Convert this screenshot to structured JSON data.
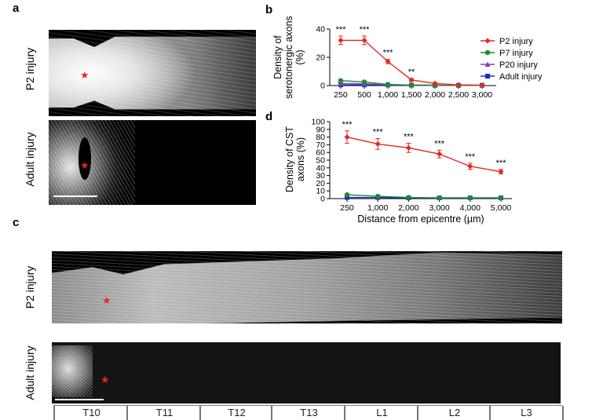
{
  "panels": {
    "a": {
      "letter": "a",
      "row_labels": [
        "P2 injury",
        "Adult injury"
      ]
    },
    "b": {
      "letter": "b"
    },
    "c": {
      "letter": "c",
      "row_labels": [
        "P2 injury",
        "Adult injury"
      ],
      "segments": [
        "T10",
        "T11",
        "T12",
        "T13",
        "L1",
        "L2",
        "L3"
      ]
    },
    "d": {
      "letter": "d"
    }
  },
  "lesion_marker": "★",
  "shared_xlabel": "Distance from epicentre (µm)",
  "colors": {
    "P2 injury": "#e8261f",
    "P7 injury": "#1e8a2e",
    "P20 injury": "#8a3fb5",
    "Adult injury": "#1a2bd6"
  },
  "chart_data": [
    {
      "id": "b",
      "type": "line",
      "ylabel": "Density of serotonergic axons (%)",
      "xlabel": "",
      "categories": [
        "250",
        "500",
        "1,000",
        "1,500",
        "2,000",
        "2,500",
        "3,000"
      ],
      "ylim": [
        0,
        40
      ],
      "yticks": [
        "0",
        "20",
        "40"
      ],
      "significance": [
        "***",
        "***",
        "***",
        "**",
        "",
        "",
        ""
      ],
      "legend_position": "right",
      "series": [
        {
          "name": "P2 injury",
          "marker": "diamond",
          "values": [
            32,
            32,
            17,
            4,
            1.5,
            0.5,
            0.3
          ],
          "errors": [
            3,
            3,
            1.5,
            1,
            0.5,
            0.3,
            0.2
          ]
        },
        {
          "name": "P7 injury",
          "marker": "circle",
          "values": [
            3.5,
            2.5,
            0.8,
            0.4,
            0.3,
            0.2,
            0.2
          ],
          "errors": [
            0,
            0,
            0,
            0,
            0,
            0,
            0
          ]
        },
        {
          "name": "P20 injury",
          "marker": "triangle",
          "values": [
            1.5,
            1.2,
            0.6,
            0.3,
            0.2,
            0.2,
            0.2
          ],
          "errors": [
            0,
            0,
            0,
            0,
            0,
            0,
            0
          ]
        },
        {
          "name": "Adult injury",
          "marker": "square",
          "values": [
            0.5,
            0.5,
            0.4,
            0.3,
            0.2,
            0.2,
            0.2
          ],
          "errors": [
            0,
            0,
            0,
            0,
            0,
            0,
            0
          ]
        }
      ]
    },
    {
      "id": "d",
      "type": "line",
      "ylabel": "Density of CST axons (%)",
      "xlabel": "Distance from epicentre (µm)",
      "categories": [
        "250",
        "1,000",
        "2,000",
        "3,000",
        "4,000",
        "5,000"
      ],
      "ylim": [
        0,
        100
      ],
      "yticks": [
        "0",
        "10",
        "20",
        "30",
        "40",
        "50",
        "60",
        "70",
        "80",
        "90",
        "100"
      ],
      "significance": [
        "***",
        "***",
        "***",
        "***",
        "***",
        "***"
      ],
      "series": [
        {
          "name": "P2 injury",
          "marker": "diamond",
          "values": [
            80,
            71,
            66,
            58,
            42,
            35
          ],
          "errors": [
            8,
            7,
            6,
            5,
            4,
            3
          ]
        },
        {
          "name": "P7 injury",
          "marker": "circle",
          "values": [
            5,
            3,
            1.5,
            1,
            1,
            1
          ],
          "errors": [
            0,
            0,
            0,
            0,
            0,
            0
          ]
        },
        {
          "name": "Adult injury",
          "marker": "square",
          "values": [
            1.5,
            1.5,
            1,
            1,
            1,
            1
          ],
          "errors": [
            0,
            0,
            0,
            0,
            0,
            0
          ]
        }
      ]
    }
  ]
}
